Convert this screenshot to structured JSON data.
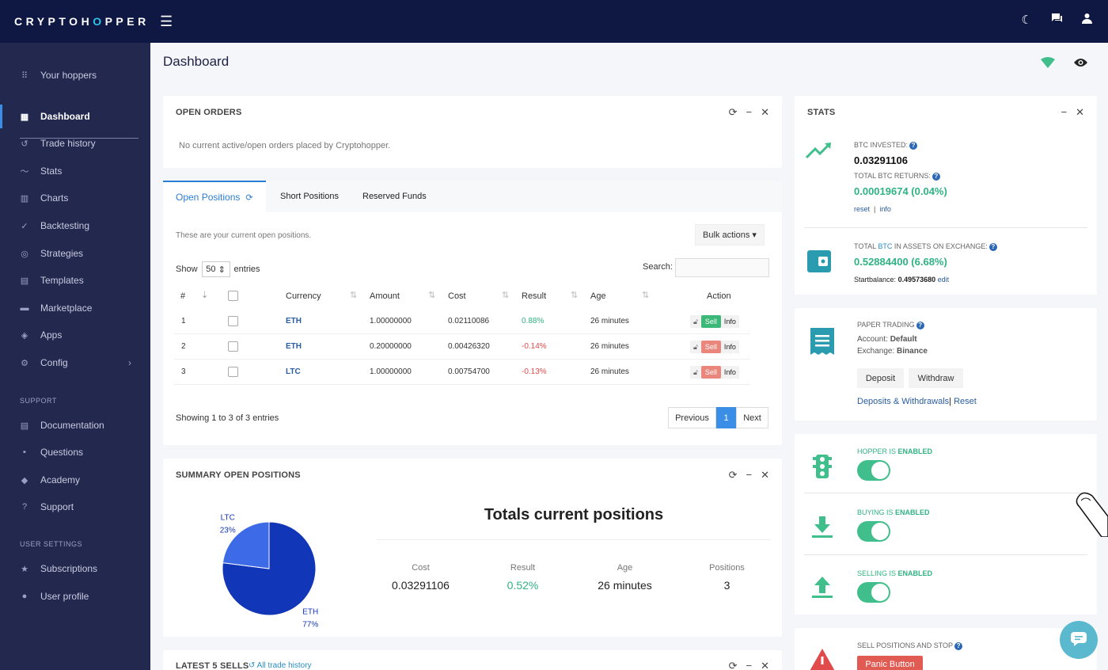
{
  "brand": {
    "prefix": "CRYPTOH",
    "o": "O",
    "suffix": "PPER"
  },
  "sidebar": {
    "your_hoppers": "Your hoppers",
    "items": [
      {
        "label": "Dashboard",
        "icon": "dashboard-icon"
      },
      {
        "label": "Trade history",
        "icon": "history-icon"
      },
      {
        "label": "Stats",
        "icon": "stats-icon"
      },
      {
        "label": "Charts",
        "icon": "charts-icon"
      },
      {
        "label": "Backtesting",
        "icon": "backtesting-icon"
      },
      {
        "label": "Strategies",
        "icon": "strategies-icon"
      },
      {
        "label": "Templates",
        "icon": "templates-icon"
      },
      {
        "label": "Marketplace",
        "icon": "marketplace-icon"
      },
      {
        "label": "Apps",
        "icon": "apps-icon"
      },
      {
        "label": "Config",
        "icon": "config-icon"
      }
    ],
    "support_title": "SUPPORT",
    "support": [
      {
        "label": "Documentation",
        "icon": "documentation-icon"
      },
      {
        "label": "Questions",
        "icon": "questions-icon"
      },
      {
        "label": "Academy",
        "icon": "academy-icon"
      },
      {
        "label": "Support",
        "icon": "support-icon"
      }
    ],
    "user_title": "USER SETTINGS",
    "user": [
      {
        "label": "Subscriptions",
        "icon": "subscriptions-icon"
      },
      {
        "label": "User profile",
        "icon": "user-profile-icon"
      }
    ]
  },
  "page_title": "Dashboard",
  "open_orders": {
    "title": "OPEN ORDERS",
    "empty": "No current active/open orders placed by Cryptohopper."
  },
  "tabs": [
    "Open Positions",
    "Short Positions",
    "Reserved Funds"
  ],
  "positions": {
    "intro": "These are your current open positions.",
    "bulk": "Bulk actions",
    "show": "Show",
    "entries_value": "50",
    "entries": "entries",
    "search": "Search:",
    "headers": [
      "#",
      "Currency",
      "Amount",
      "Cost",
      "Result",
      "Age",
      "Action"
    ],
    "rows": [
      {
        "n": "1",
        "currency": "ETH",
        "amount": "1.00000000",
        "cost": "0.02110086",
        "result": "0.88%",
        "age": "26 minutes",
        "positive": true
      },
      {
        "n": "2",
        "currency": "ETH",
        "amount": "0.20000000",
        "cost": "0.00426320",
        "result": "-0.14%",
        "age": "26 minutes",
        "positive": false
      },
      {
        "n": "3",
        "currency": "LTC",
        "amount": "1.00000000",
        "cost": "0.00754700",
        "result": "-0.13%",
        "age": "26 minutes",
        "positive": false
      }
    ],
    "sell": "Sell",
    "info": "Info",
    "showing": "Showing 1 to 3 of 3 entries",
    "prev": "Previous",
    "page": "1",
    "next": "Next"
  },
  "summary": {
    "title": "SUMMARY OPEN POSITIONS",
    "totals_title": "Totals current positions",
    "cols": [
      {
        "label": "Cost",
        "value": "0.03291106"
      },
      {
        "label": "Result",
        "value": "0.52%"
      },
      {
        "label": "Age",
        "value": "26 minutes"
      },
      {
        "label": "Positions",
        "value": "3"
      }
    ]
  },
  "chart_data": {
    "type": "pie",
    "categories": [
      "ETH",
      "LTC"
    ],
    "values": [
      77,
      23
    ],
    "labels": [
      "77%",
      "23%"
    ],
    "colors": [
      "#1236b8",
      "#3d6ae6"
    ]
  },
  "latest": {
    "title": "LATEST 5 SELLS",
    "link": "All trade history"
  },
  "stats": {
    "title": "STATS",
    "btc_invested_label": "BTC INVESTED:",
    "btc_invested": "0.03291106",
    "returns_label": "TOTAL BTC RETURNS:",
    "returns": "0.00019674 (0.04%)",
    "reset": "reset",
    "sep": "|",
    "info": "info",
    "assets_label_a": "TOTAL ",
    "assets_label_btc": "BTC",
    "assets_label_b": " IN ASSETS ON EXCHANGE:",
    "assets": "0.52884400 (6.68%)",
    "startbalance_label": "Startbalance:",
    "startbalance": "0.49573680",
    "edit": "edit"
  },
  "paper": {
    "title": "PAPER TRADING",
    "account_label": "Account:",
    "account": "Default",
    "exchange_label": "Exchange:",
    "exchange": "Binance",
    "deposit": "Deposit",
    "withdraw": "Withdraw",
    "link1": "Deposits & Withdrawals",
    "sep": "|",
    "link2": "Reset"
  },
  "toggles": [
    {
      "prefix": "HOPPER IS ",
      "state": "ENABLED"
    },
    {
      "prefix": "BUYING IS ",
      "state": "ENABLED"
    },
    {
      "prefix": "SELLING IS ",
      "state": "ENABLED"
    }
  ],
  "panic": {
    "title": "SELL POSITIONS AND STOP",
    "button": "Panic Button"
  },
  "colors": {
    "topbar": "#0f1743",
    "sidebar": "#23284f",
    "accent": "#2b7dd4",
    "green": "#2fb383",
    "red": "#e24b4b"
  }
}
